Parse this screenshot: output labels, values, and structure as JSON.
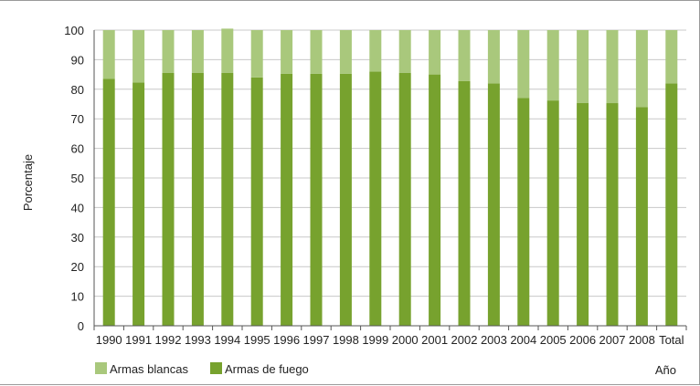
{
  "chart_data": {
    "type": "bar",
    "stacked": true,
    "normalized_percent": true,
    "categories": [
      "1990",
      "1991",
      "1992",
      "1993",
      "1994",
      "1995",
      "1996",
      "1997",
      "1998",
      "1999",
      "2000",
      "2001",
      "2002",
      "2003",
      "2004",
      "2005",
      "2006",
      "2007",
      "2008",
      "Total"
    ],
    "series": [
      {
        "name": "Armas de fuego",
        "color": "#77a22e",
        "values": [
          83.5,
          82.3,
          85.5,
          85.5,
          85.5,
          84.0,
          85.2,
          85.2,
          85.2,
          86.0,
          85.5,
          85.0,
          82.8,
          82.0,
          77.0,
          76.2,
          75.4,
          75.3,
          74.0,
          82.0
        ]
      },
      {
        "name": "Armas blancas",
        "color": "#a9c87c",
        "values": [
          16.5,
          17.7,
          14.5,
          14.5,
          15.0,
          16.0,
          14.8,
          14.8,
          14.8,
          14.0,
          14.5,
          15.0,
          17.2,
          18.0,
          23.0,
          23.8,
          24.6,
          24.7,
          26.0,
          18.0
        ]
      }
    ],
    "ylabel": "Porcentaje",
    "xlabel": "Año",
    "ylim": [
      0,
      100
    ],
    "yticks": [
      0,
      10,
      20,
      30,
      40,
      50,
      60,
      70,
      80,
      90,
      100
    ],
    "grid": true,
    "legend": {
      "position": "bottom-left",
      "entries": [
        "Armas blancas",
        "Armas de fuego"
      ]
    }
  }
}
